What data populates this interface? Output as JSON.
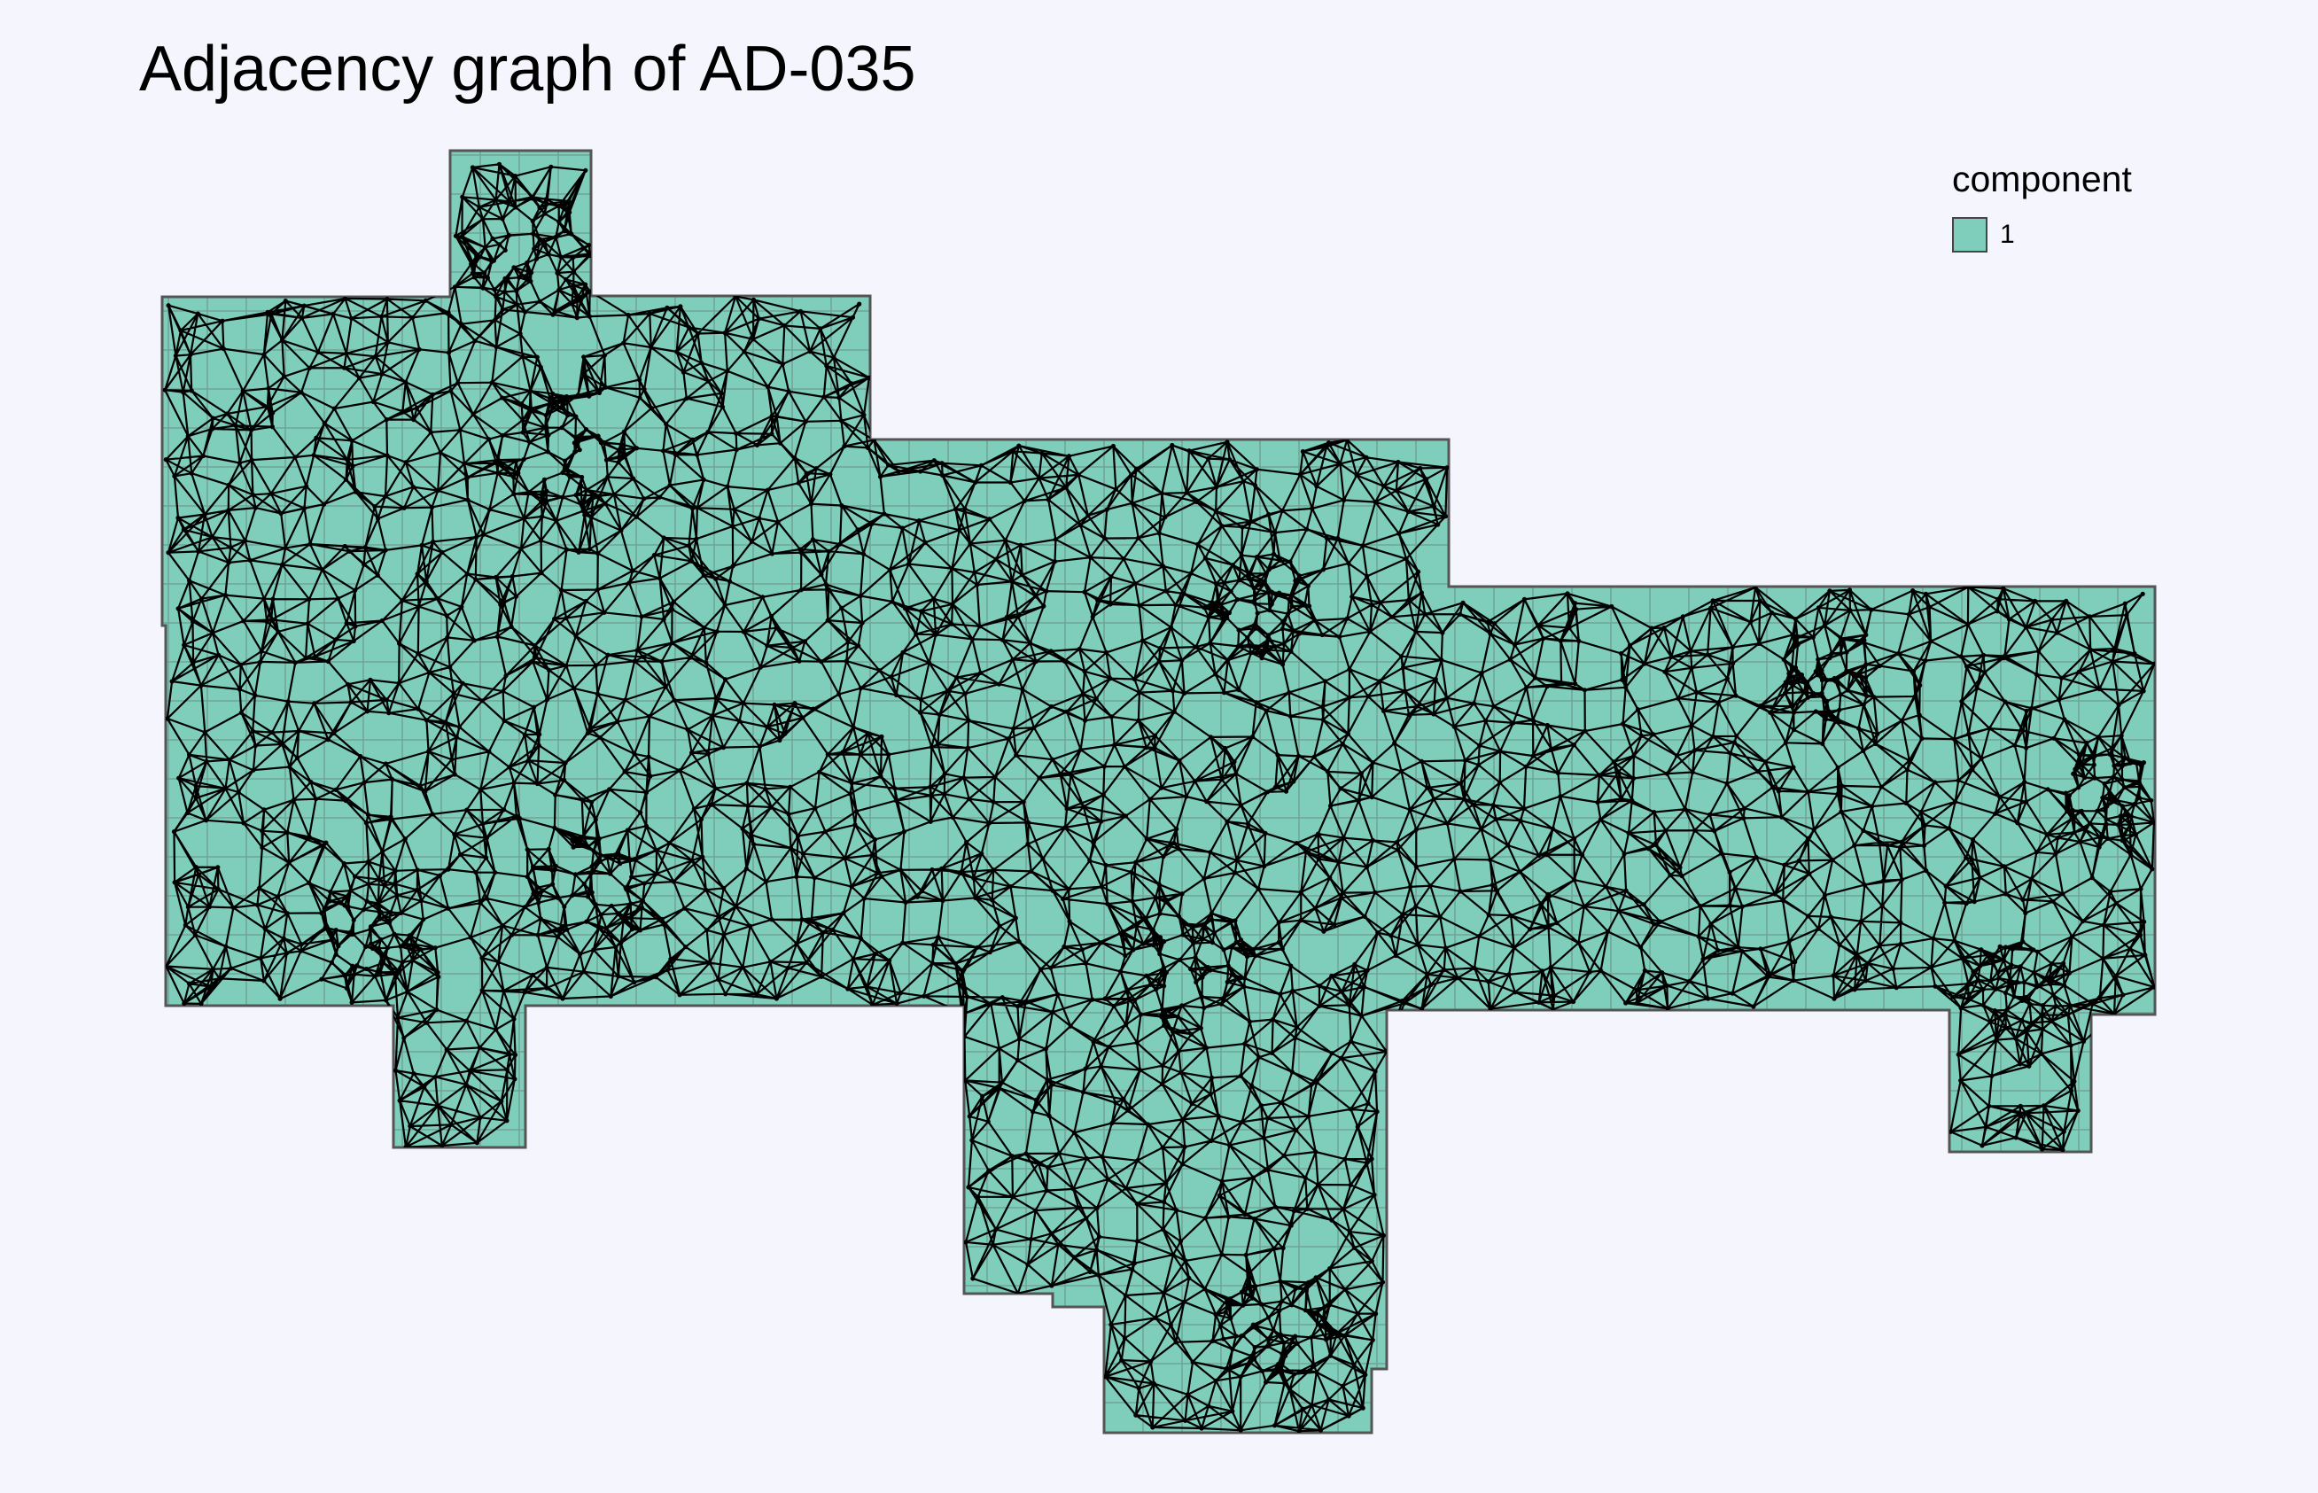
{
  "title": "Adjacency graph of AD-035",
  "legend": {
    "title": "component",
    "items": [
      {
        "label": "1",
        "color": "#7fcdbb"
      }
    ]
  },
  "map": {
    "region_fill": "#7fcdbb",
    "border_color": "#555555",
    "edge_color": "#000000",
    "node_color": "#000000",
    "components": 1
  }
}
